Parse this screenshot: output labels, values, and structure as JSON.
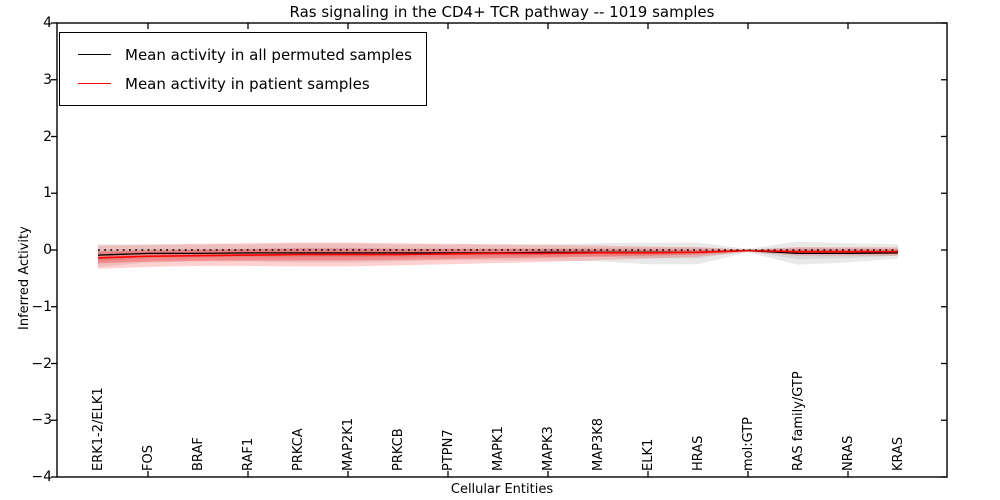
{
  "chart_data": {
    "type": "line",
    "title": "Ras signaling in the CD4+ TCR pathway -- 1019 samples",
    "xlabel": "Cellular Entities",
    "ylabel": "Inferred Activity",
    "ylim": [
      -4,
      4
    ],
    "yticks": [
      4,
      3,
      2,
      1,
      0,
      -1,
      -2,
      -3,
      -4
    ],
    "ytick_labels": [
      "4",
      "3",
      "2",
      "1",
      "0",
      "−1",
      "−2",
      "−3",
      "−4"
    ],
    "grid": false,
    "legend_position": "upper-left",
    "zero_line": {
      "style": "dotted",
      "color": "#000000",
      "y": 0
    },
    "categories": [
      "ERK1-2/ELK1",
      "FOS",
      "BRAF",
      "RAF1",
      "PRKCA",
      "MAP2K1",
      "PRKCB",
      "PTPN7",
      "MAPK1",
      "MAPK3",
      "MAP3K8",
      "ELK1",
      "HRAS",
      "mol:GTP",
      "RAS family/GTP",
      "NRAS",
      "KRAS"
    ],
    "series": [
      {
        "name": "Mean activity in all permuted samples",
        "color": "#000000",
        "band_color": "#777777",
        "values": [
          -0.09,
          -0.06,
          -0.06,
          -0.05,
          -0.05,
          -0.05,
          -0.05,
          -0.05,
          -0.05,
          -0.04,
          -0.04,
          -0.04,
          -0.04,
          -0.01,
          -0.06,
          -0.06,
          -0.05
        ],
        "band_upper": [
          0.1,
          0.1,
          0.1,
          0.1,
          0.12,
          0.12,
          0.1,
          0.1,
          0.1,
          0.1,
          0.12,
          0.13,
          0.13,
          0.02,
          0.15,
          0.12,
          0.1
        ],
        "band_lower": [
          -0.3,
          -0.22,
          -0.2,
          -0.2,
          -0.22,
          -0.22,
          -0.2,
          -0.18,
          -0.18,
          -0.18,
          -0.2,
          -0.25,
          -0.25,
          -0.04,
          -0.26,
          -0.22,
          -0.15
        ]
      },
      {
        "name": "Mean activity in patient samples",
        "color": "#ff0000",
        "band_color": "#ff0000",
        "values": [
          -0.14,
          -0.11,
          -0.1,
          -0.09,
          -0.08,
          -0.08,
          -0.08,
          -0.07,
          -0.06,
          -0.06,
          -0.05,
          -0.05,
          -0.04,
          -0.01,
          -0.03,
          -0.03,
          -0.03
        ],
        "band_upper": [
          0.08,
          0.09,
          0.11,
          0.12,
          0.13,
          0.13,
          0.12,
          0.11,
          0.1,
          0.09,
          0.08,
          0.06,
          0.05,
          0.01,
          0.05,
          0.05,
          0.05
        ],
        "band_lower": [
          -0.33,
          -0.3,
          -0.28,
          -0.28,
          -0.29,
          -0.29,
          -0.27,
          -0.25,
          -0.23,
          -0.21,
          -0.18,
          -0.15,
          -0.12,
          -0.03,
          -0.1,
          -0.1,
          -0.1
        ]
      }
    ]
  }
}
